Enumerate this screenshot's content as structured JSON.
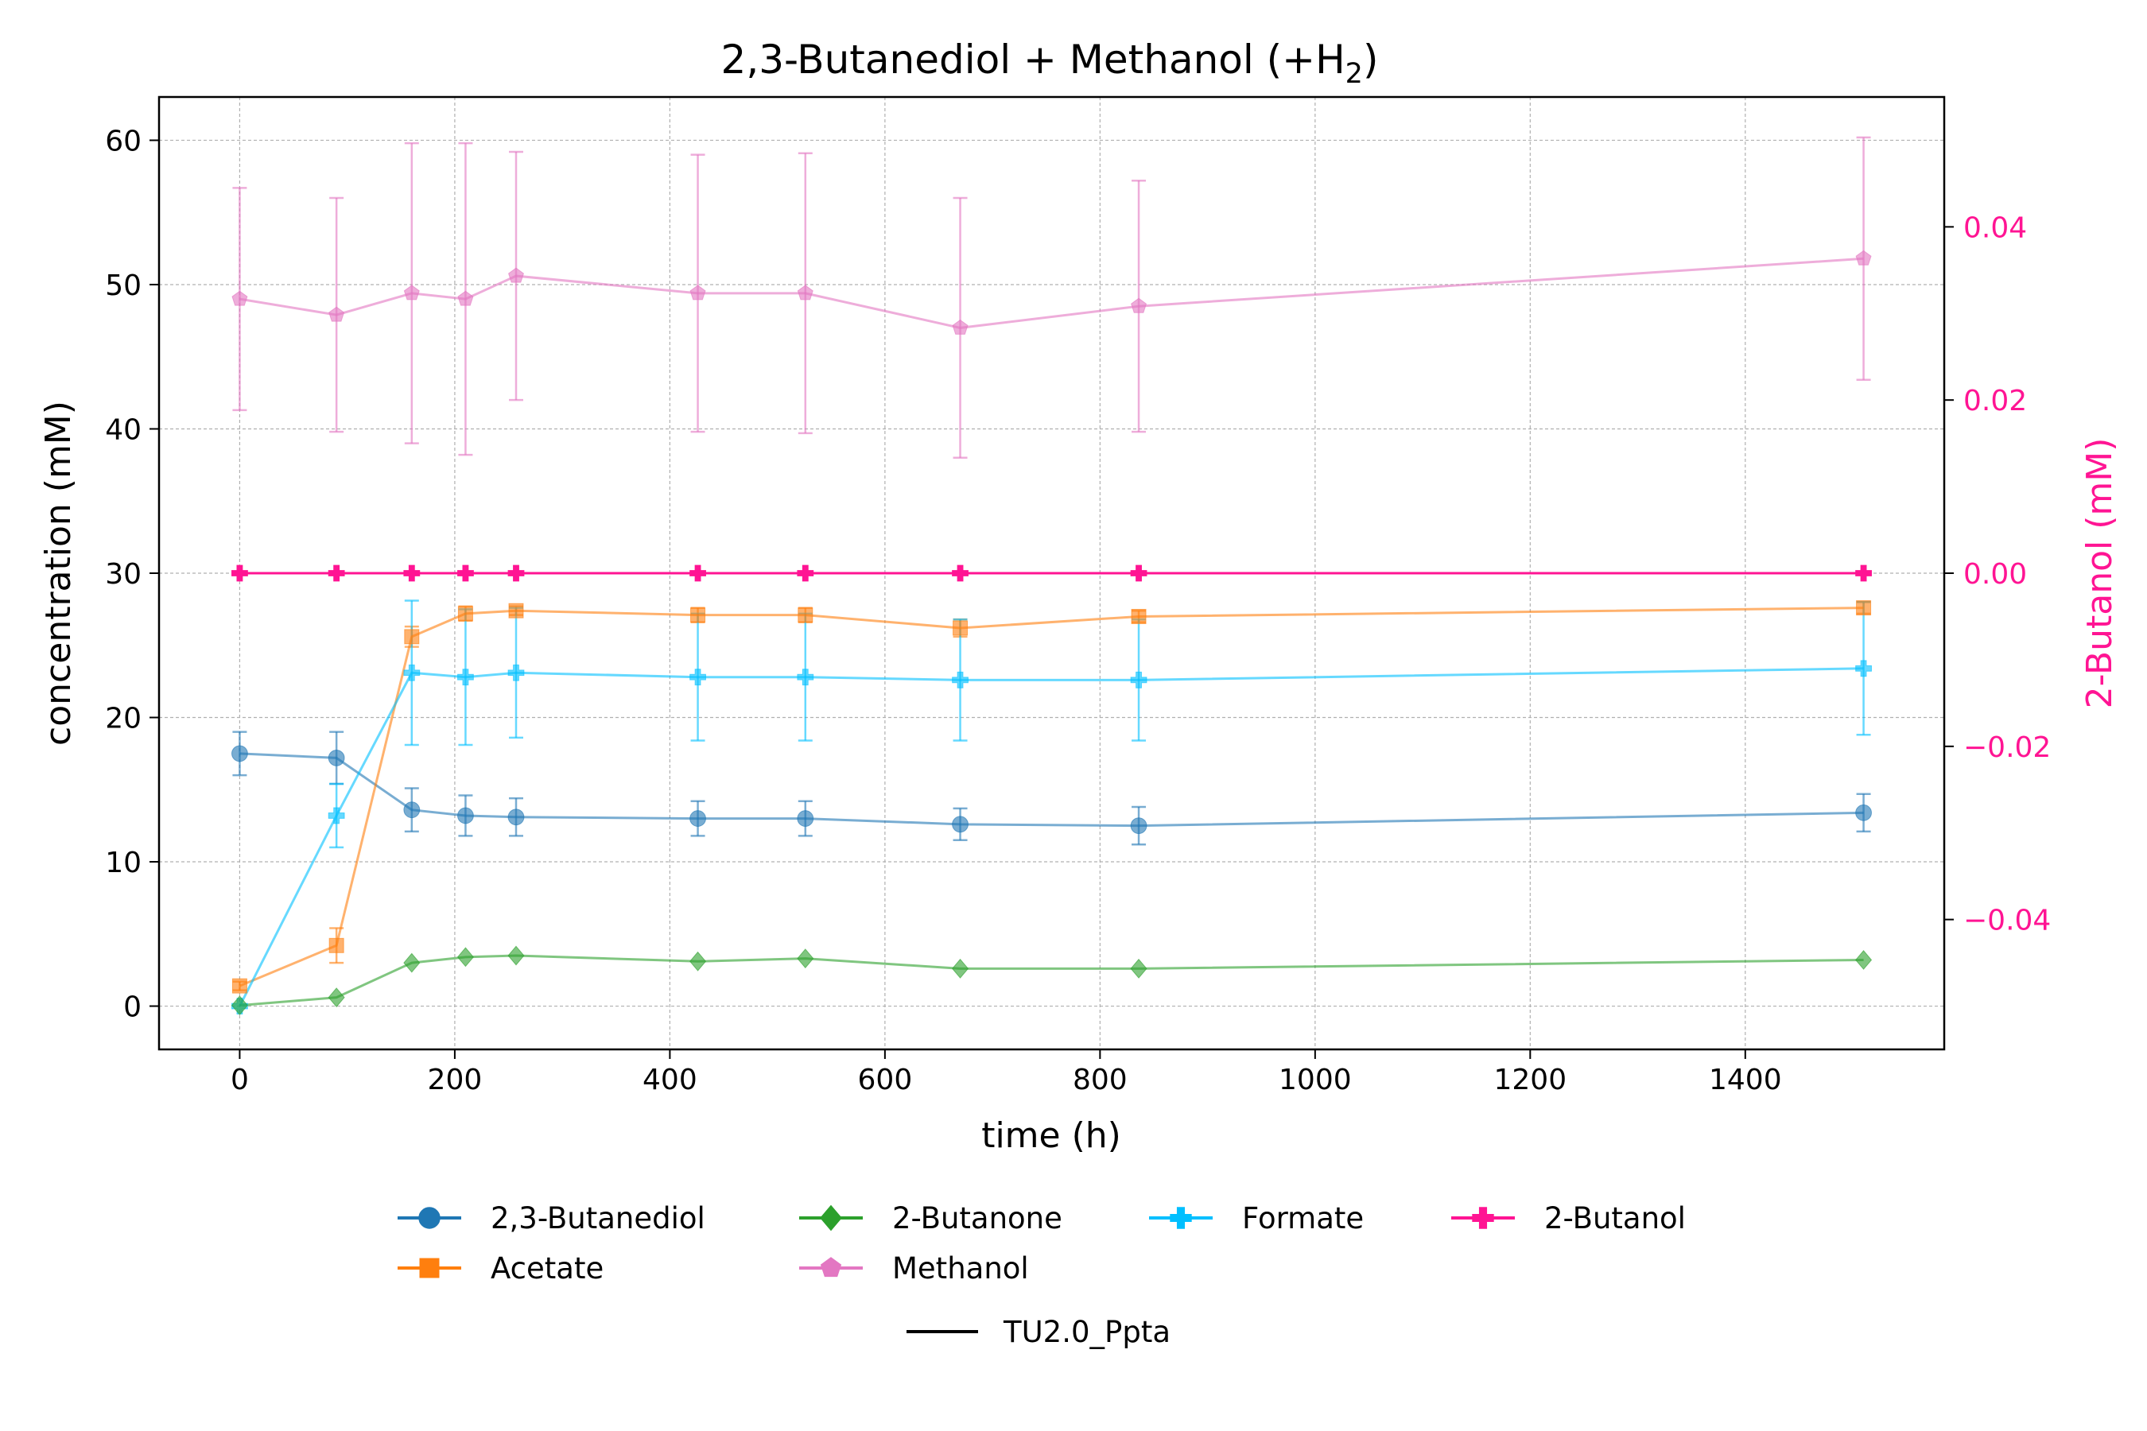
{
  "chart_data": {
    "type": "line",
    "title": "2,3-Butanediol + Methanol (+H",
    "title_subscript": "2",
    "title_suffix": ")",
    "xlabel": "time (h)",
    "ylabel": "concentration (mM)",
    "y2label": "2-Butanol (mM)",
    "xlim": [
      -75,
      1585
    ],
    "ylim": [
      -3,
      63
    ],
    "y2lim": [
      -0.055,
      0.055
    ],
    "xticks": [
      0,
      200,
      400,
      600,
      800,
      1000,
      1200,
      1400
    ],
    "yticks": [
      0,
      10,
      20,
      30,
      40,
      50,
      60
    ],
    "y2ticks": [
      -0.04,
      -0.02,
      0.0,
      0.02,
      0.04
    ],
    "y2tick_labels": [
      "−0.04",
      "−0.02",
      "0.00",
      "0.02",
      "0.04"
    ],
    "grid": true,
    "legend_placement": "bottom-center",
    "x": [
      0,
      90,
      160,
      210,
      257,
      426,
      526,
      670,
      836,
      1510
    ],
    "series": [
      {
        "name": "2,3-Butanediol",
        "axis": "left",
        "color": "#1f77b4",
        "marker": "circle",
        "values": [
          17.5,
          17.2,
          13.6,
          13.2,
          13.1,
          13.0,
          13.0,
          12.6,
          12.5,
          13.4
        ],
        "errors": [
          1.5,
          1.8,
          1.5,
          1.4,
          1.3,
          1.2,
          1.2,
          1.1,
          1.3,
          1.3
        ]
      },
      {
        "name": "Acetate",
        "axis": "left",
        "color": "#ff7f0e",
        "marker": "square",
        "values": [
          1.4,
          4.2,
          25.6,
          27.2,
          27.4,
          27.1,
          27.1,
          26.2,
          27.0,
          27.6
        ],
        "errors": [
          0.3,
          1.2,
          0.7,
          0.5,
          0.3,
          0.5,
          0.5,
          0.6,
          0.4,
          0.4
        ]
      },
      {
        "name": "2-Butanone",
        "axis": "left",
        "color": "#2ca02c",
        "marker": "diamond",
        "values": [
          0.05,
          0.6,
          3.0,
          3.4,
          3.5,
          3.1,
          3.3,
          2.6,
          2.6,
          3.2
        ],
        "errors": [
          0,
          0,
          0,
          0,
          0,
          0,
          0,
          0,
          0,
          0
        ]
      },
      {
        "name": "Methanol",
        "axis": "left",
        "color": "#e377c2",
        "marker": "pentagon",
        "values": [
          49.0,
          47.9,
          49.4,
          49.0,
          50.6,
          49.4,
          49.4,
          47.0,
          48.5,
          51.8
        ],
        "errors": [
          7.7,
          8.1,
          10.4,
          10.8,
          8.6,
          9.6,
          9.7,
          9.0,
          8.7,
          8.4
        ]
      },
      {
        "name": "Formate",
        "axis": "left",
        "color": "#00bfff",
        "marker": "plus",
        "values": [
          0.0,
          13.2,
          23.1,
          22.8,
          23.1,
          22.8,
          22.8,
          22.6,
          22.6,
          23.4
        ],
        "errors": [
          0,
          2.2,
          5.0,
          4.7,
          4.5,
          4.4,
          4.4,
          4.2,
          4.2,
          4.6
        ]
      },
      {
        "name": "2-Butanol",
        "axis": "right",
        "color": "#ff1493",
        "marker": "plus",
        "values": [
          0,
          0,
          0,
          0,
          0,
          0,
          0,
          0,
          0,
          0
        ],
        "errors": [
          0,
          0,
          0,
          0,
          0,
          0,
          0,
          0,
          0,
          0
        ]
      }
    ],
    "legend": {
      "entries": [
        {
          "name": "2,3-Butanediol",
          "color": "#1f77b4",
          "marker": "circle"
        },
        {
          "name": "Acetate",
          "color": "#ff7f0e",
          "marker": "square"
        },
        {
          "name": "2-Butanone",
          "color": "#2ca02c",
          "marker": "diamond"
        },
        {
          "name": "Methanol",
          "color": "#e377c2",
          "marker": "pentagon"
        },
        {
          "name": "Formate",
          "color": "#00bfff",
          "marker": "plus"
        },
        {
          "name": "2-Butanol",
          "color": "#ff1493",
          "marker": "plus"
        }
      ],
      "strain_label": "TU2.0_Ppta",
      "strain_color": "#000000"
    }
  }
}
